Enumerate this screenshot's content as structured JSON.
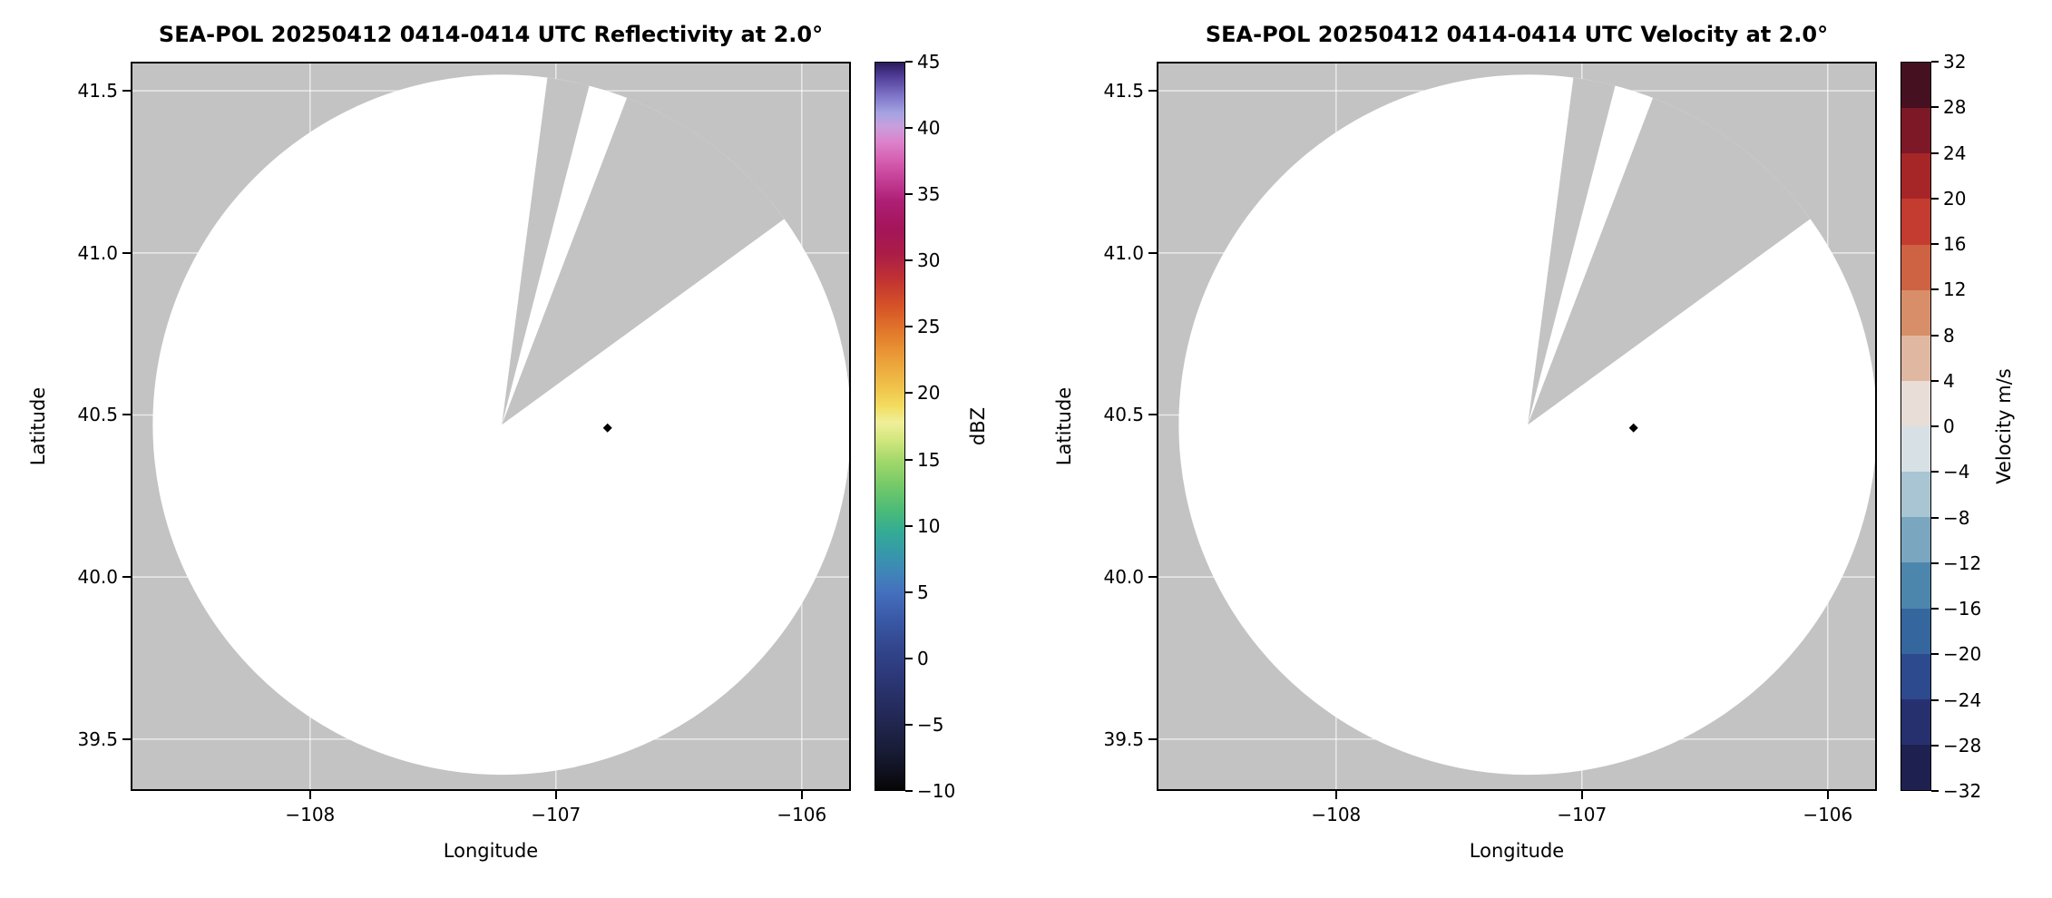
{
  "colors": {
    "figure_bg": "#ffffff",
    "plot_bg_gray": "#c3c3c3",
    "scan_white": "#ffffff",
    "grid_line": "rgba(255,255,255,0.65)",
    "spine": "#000000",
    "marker_black": "#000000"
  },
  "radar_scan": {
    "center_lon": -107.22,
    "center_lat": 40.47,
    "radius_lon_deg": 1.42,
    "radius_lat_deg": 1.08,
    "missing_sectors_deg": [
      [
        7.5,
        14.5
      ],
      [
        21,
        54
      ]
    ],
    "marker": {
      "lon": -106.79,
      "lat": 40.46
    },
    "description": "Radar PPI coverage circle; white = scanned area with no echoes displayed, gray = no data (outside range and missing azimuth sectors), black diamond = site marker"
  },
  "chart_data": [
    {
      "type": "heatmap",
      "subtype": "radar-ppi-scan",
      "title": "SEA-POL 20250412 0414-0414 UTC Reflectivity at 2.0°",
      "xlabel": "Longitude",
      "ylabel": "Latitude",
      "xlim": [
        -108.73,
        -105.8
      ],
      "ylim": [
        39.34,
        41.59
      ],
      "xticks": [
        {
          "v": -108,
          "label": "−108"
        },
        {
          "v": -107,
          "label": "−107"
        },
        {
          "v": -106,
          "label": "−106"
        }
      ],
      "yticks": [
        {
          "v": 39.5,
          "label": "39.5"
        },
        {
          "v": 40.0,
          "label": "40.0"
        },
        {
          "v": 40.5,
          "label": "40.5"
        },
        {
          "v": 41.0,
          "label": "41.0"
        },
        {
          "v": 41.5,
          "label": "41.5"
        }
      ],
      "values_note": "No reflectivity echoes above -10 dBZ; entire scan area rendered white",
      "grid": true,
      "legend": "colorbar-right",
      "colorbar": {
        "label": "dBZ",
        "min": -10,
        "max": 45,
        "kind": "continuous",
        "ticks": [
          {
            "v": -10,
            "label": "−10"
          },
          {
            "v": -5,
            "label": "−5"
          },
          {
            "v": 0,
            "label": "0"
          },
          {
            "v": 5,
            "label": "5"
          },
          {
            "v": 10,
            "label": "10"
          },
          {
            "v": 15,
            "label": "15"
          },
          {
            "v": 20,
            "label": "20"
          },
          {
            "v": 25,
            "label": "25"
          },
          {
            "v": 30,
            "label": "30"
          },
          {
            "v": 35,
            "label": "35"
          },
          {
            "v": 40,
            "label": "40"
          },
          {
            "v": 45,
            "label": "45"
          }
        ],
        "gradient_stops": [
          [
            -10,
            "#060607"
          ],
          [
            -8.5,
            "#101220"
          ],
          [
            -7,
            "#181c36"
          ],
          [
            -5,
            "#20264e"
          ],
          [
            -3,
            "#272f66"
          ],
          [
            -1,
            "#2d3a7c"
          ],
          [
            1,
            "#33488f"
          ],
          [
            3,
            "#3a5aa8"
          ],
          [
            5,
            "#4470bd"
          ],
          [
            6.5,
            "#3f86b8"
          ],
          [
            8,
            "#359aa8"
          ],
          [
            9.5,
            "#34ab95"
          ],
          [
            11,
            "#48ba79"
          ],
          [
            13,
            "#74c969"
          ],
          [
            15,
            "#a5d96b"
          ],
          [
            16.5,
            "#d2e77e"
          ],
          [
            17.8,
            "#f0ef9a"
          ],
          [
            19,
            "#f2dd60"
          ],
          [
            20.5,
            "#f0c24a"
          ],
          [
            22.5,
            "#eba039"
          ],
          [
            24.5,
            "#e37b2b"
          ],
          [
            26.5,
            "#d75427"
          ],
          [
            28.5,
            "#c23431"
          ],
          [
            30.5,
            "#ab1d46"
          ],
          [
            32.5,
            "#a4155a"
          ],
          [
            34.5,
            "#ad1f74"
          ],
          [
            36,
            "#c23b93"
          ],
          [
            37.5,
            "#d55cb0"
          ],
          [
            39,
            "#dc82cb"
          ],
          [
            40.2,
            "#c89fdd"
          ],
          [
            41.2,
            "#a4a3e2"
          ],
          [
            42.5,
            "#7e74c8"
          ],
          [
            44,
            "#4f3c96"
          ],
          [
            45,
            "#2a1b5a"
          ]
        ]
      }
    },
    {
      "type": "heatmap",
      "subtype": "radar-ppi-scan",
      "title": "SEA-POL 20250412 0414-0414 UTC Velocity at 2.0°",
      "xlabel": "Longitude",
      "ylabel": "Latitude",
      "xlim": [
        -108.73,
        -105.8
      ],
      "ylim": [
        39.34,
        41.59
      ],
      "xticks": [
        {
          "v": -108,
          "label": "−108"
        },
        {
          "v": -107,
          "label": "−107"
        },
        {
          "v": -106,
          "label": "−106"
        }
      ],
      "yticks": [
        {
          "v": 39.5,
          "label": "39.5"
        },
        {
          "v": 40.0,
          "label": "40.0"
        },
        {
          "v": 40.5,
          "label": "40.5"
        },
        {
          "v": 41.0,
          "label": "41.0"
        },
        {
          "v": 41.5,
          "label": "41.5"
        }
      ],
      "values_note": "No velocity data displayed; entire scan area rendered white",
      "grid": true,
      "legend": "colorbar-right",
      "colorbar": {
        "label": "Velocity m/s",
        "min": -32,
        "max": 32,
        "kind": "discrete",
        "ticks": [
          {
            "v": -32,
            "label": "−32"
          },
          {
            "v": -28,
            "label": "−28"
          },
          {
            "v": -24,
            "label": "−24"
          },
          {
            "v": -20,
            "label": "−20"
          },
          {
            "v": -16,
            "label": "−16"
          },
          {
            "v": -12,
            "label": "−12"
          },
          {
            "v": -8,
            "label": "−8"
          },
          {
            "v": -4,
            "label": "−4"
          },
          {
            "v": 0,
            "label": "0"
          },
          {
            "v": 4,
            "label": "4"
          },
          {
            "v": 8,
            "label": "8"
          },
          {
            "v": 12,
            "label": "12"
          },
          {
            "v": 16,
            "label": "16"
          },
          {
            "v": 20,
            "label": "20"
          },
          {
            "v": 24,
            "label": "24"
          },
          {
            "v": 28,
            "label": "28"
          },
          {
            "v": 32,
            "label": "32"
          }
        ],
        "segments_bottom_to_top": [
          "#1e2150",
          "#27306f",
          "#2d4a8e",
          "#35679e",
          "#4d86ad",
          "#7aa6c0",
          "#a9c5d3",
          "#d7e1e5",
          "#e9ddd7",
          "#e0b8a1",
          "#d88f69",
          "#ce6343",
          "#c33c2f",
          "#a62628",
          "#7d1827",
          "#451020"
        ]
      }
    }
  ]
}
